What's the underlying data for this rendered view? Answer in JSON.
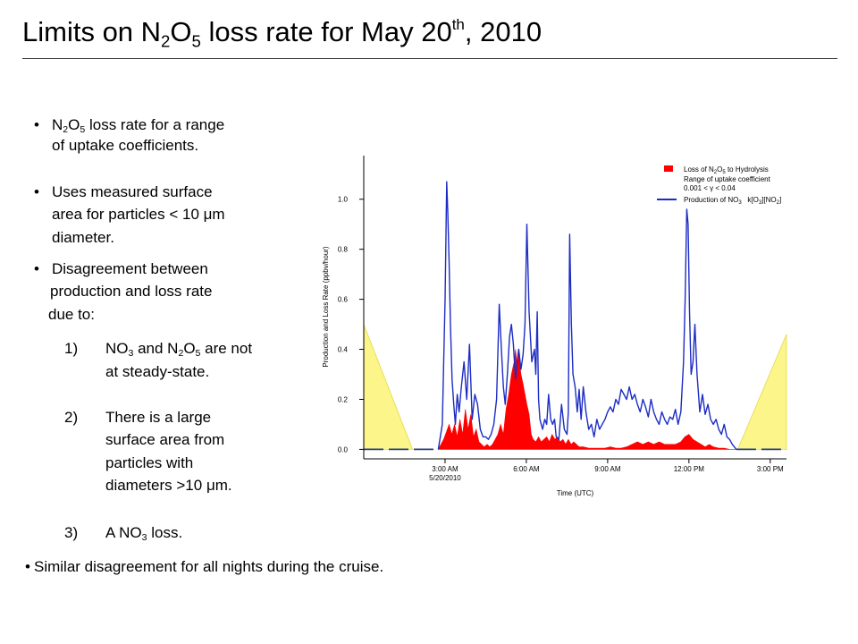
{
  "header": {
    "title_pre": "Limits on N",
    "title_sub1": "2",
    "title_mid": "O",
    "title_sub2": "5",
    "title_post": " loss rate for May 20",
    "title_sup": "th",
    "title_end": ", 2010"
  },
  "bullets": {
    "b1": {
      "pre": "N",
      "s1": "2",
      "mid": "O",
      "s2": "5",
      "post": " loss rate for a range",
      "line2": "of uptake coefficients."
    },
    "b2": {
      "line1_pre": "Uses measured surface",
      "line2_pre": "area for particles < 10 ",
      "mu": "μ",
      "line2_post": "m",
      "line3": "diameter."
    },
    "b3": {
      "line1": "Disagreement between",
      "line2": "production and loss rate",
      "line3": "due to:"
    },
    "items": {
      "n1": "1)",
      "i1_a": "NO",
      "i1_s1": "3",
      "i1_b": " and N",
      "i1_s2": "2",
      "i1_c": "O",
      "i1_s3": "5",
      "i1_d": " are not",
      "i1_line2": "at steady-state.",
      "n2": "2)",
      "i2_l1": "There is a large",
      "i2_l2": "surface area from",
      "i2_l3": "particles with",
      "i2_l4a": "diameters >10 ",
      "i2_mu": "μ",
      "i2_l4b": "m.",
      "n3": "3)",
      "i3_a": "A NO",
      "i3_s": "3",
      "i3_b": " loss."
    },
    "b4": "Similar disagreement for all nights during the cruise.",
    "bullet_char": "•"
  },
  "chart_data": {
    "type": "line",
    "title": "",
    "xlabel": "Time (UTC)",
    "ylabel": "Production and Loss Rate (ppbv/hour)",
    "xlim": [
      0.0,
      15.6
    ],
    "ylim": [
      -0.02,
      1.16
    ],
    "x_ticks": [
      {
        "value": 3,
        "label": "3:00 AM",
        "sublabel": "5/20/2010"
      },
      {
        "value": 6,
        "label": "6:00 AM",
        "sublabel": ""
      },
      {
        "value": 9,
        "label": "9:00 AM",
        "sublabel": ""
      },
      {
        "value": 12,
        "label": "12:00 PM",
        "sublabel": ""
      },
      {
        "value": 15,
        "label": "3:00 PM",
        "sublabel": ""
      }
    ],
    "y_ticks": [
      0.0,
      0.2,
      0.4,
      0.6,
      0.8,
      1.0
    ],
    "y_tick_labels": [
      "0.0",
      "0.2",
      "0.4",
      "0.6",
      "0.8",
      "1.0"
    ],
    "legend": {
      "placement": "top-right",
      "loss_pre": "Loss of N",
      "loss_s1": "2",
      "loss_mid": "O",
      "loss_s2": "5",
      "loss_post": " to Hydrolysis",
      "range_line1": "Range of uptake coefficient",
      "range_line2_pre": "0.001 < ",
      "gamma": "γ",
      "range_line2_post": " < 0.04",
      "prod_pre": "Production of NO",
      "prod_s": "3",
      "prod_post": "   k[O",
      "prod_s2": "3",
      "prod_post2": "][NO",
      "prod_s3": "2",
      "prod_post3": "]"
    },
    "colors": {
      "production": "#1c2cc4",
      "loss": "#ff0000",
      "envelope": "#fbf58a",
      "envelope_edge": "#e4d94a"
    },
    "envelope": [
      {
        "name": "left",
        "points": [
          [
            0.0,
            0.0
          ],
          [
            0.0,
            0.5
          ],
          [
            1.8,
            0.0
          ]
        ]
      },
      {
        "name": "right",
        "points": [
          [
            13.8,
            0.0
          ],
          [
            15.6,
            0.46
          ],
          [
            15.6,
            0.0
          ]
        ]
      }
    ],
    "zero_segments": [
      [
        0.0,
        2.75
      ],
      [
        13.75,
        15.6
      ]
    ],
    "series": [
      {
        "kind": "production",
        "x": [
          2.75,
          2.9,
          3.0,
          3.06,
          3.1,
          3.15,
          3.2,
          3.26,
          3.32,
          3.38,
          3.45,
          3.52,
          3.6,
          3.7,
          3.8,
          3.9,
          4.0,
          4.1,
          4.2,
          4.3,
          4.4,
          4.5,
          4.6,
          4.7,
          4.8,
          4.9,
          5.0,
          5.08,
          5.15,
          5.22,
          5.3,
          5.38,
          5.45,
          5.52,
          5.6,
          5.66,
          5.72,
          5.8,
          5.88,
          5.95,
          6.02,
          6.1,
          6.2,
          6.3,
          6.35,
          6.4,
          6.45,
          6.5,
          6.55,
          6.6,
          6.68,
          6.75,
          6.82,
          6.9,
          6.97,
          7.04,
          7.1,
          7.2,
          7.3,
          7.4,
          7.5,
          7.55,
          7.6,
          7.66,
          7.72,
          7.8,
          7.88,
          7.95,
          8.02,
          8.1,
          8.2,
          8.3,
          8.4,
          8.5,
          8.6,
          8.7,
          8.8,
          8.9,
          9.0,
          9.1,
          9.2,
          9.3,
          9.4,
          9.5,
          9.6,
          9.7,
          9.8,
          9.9,
          10.0,
          10.1,
          10.2,
          10.3,
          10.4,
          10.5,
          10.6,
          10.7,
          10.8,
          10.9,
          11.0,
          11.1,
          11.2,
          11.3,
          11.4,
          11.5,
          11.6,
          11.7,
          11.8,
          11.86,
          11.92,
          11.97,
          12.02,
          12.08,
          12.15,
          12.22,
          12.3,
          12.4,
          12.5,
          12.6,
          12.7,
          12.8,
          12.9,
          13.0,
          13.1,
          13.2,
          13.3,
          13.4,
          13.5,
          13.6,
          13.75
        ],
        "y": [
          0.0,
          0.1,
          0.6,
          1.07,
          0.95,
          0.75,
          0.5,
          0.28,
          0.18,
          0.1,
          0.22,
          0.15,
          0.25,
          0.35,
          0.2,
          0.42,
          0.12,
          0.22,
          0.18,
          0.08,
          0.05,
          0.05,
          0.04,
          0.06,
          0.1,
          0.2,
          0.58,
          0.4,
          0.25,
          0.18,
          0.3,
          0.45,
          0.5,
          0.42,
          0.28,
          0.35,
          0.4,
          0.32,
          0.38,
          0.5,
          0.9,
          0.55,
          0.35,
          0.4,
          0.3,
          0.55,
          0.2,
          0.12,
          0.1,
          0.08,
          0.12,
          0.1,
          0.22,
          0.12,
          0.1,
          0.12,
          0.05,
          0.04,
          0.18,
          0.08,
          0.06,
          0.15,
          0.86,
          0.5,
          0.3,
          0.25,
          0.15,
          0.24,
          0.12,
          0.25,
          0.15,
          0.08,
          0.1,
          0.05,
          0.12,
          0.08,
          0.1,
          0.12,
          0.15,
          0.17,
          0.15,
          0.2,
          0.18,
          0.24,
          0.22,
          0.2,
          0.25,
          0.2,
          0.22,
          0.18,
          0.15,
          0.2,
          0.17,
          0.13,
          0.2,
          0.15,
          0.12,
          0.1,
          0.15,
          0.12,
          0.1,
          0.13,
          0.12,
          0.16,
          0.1,
          0.15,
          0.35,
          0.6,
          0.96,
          0.9,
          0.55,
          0.3,
          0.35,
          0.5,
          0.3,
          0.15,
          0.22,
          0.14,
          0.18,
          0.12,
          0.1,
          0.12,
          0.08,
          0.06,
          0.1,
          0.05,
          0.04,
          0.02,
          0.0
        ]
      },
      {
        "kind": "loss",
        "x": [
          2.75,
          2.85,
          2.95,
          3.05,
          3.15,
          3.25,
          3.35,
          3.45,
          3.55,
          3.65,
          3.75,
          3.85,
          3.95,
          4.05,
          4.15,
          4.25,
          4.35,
          4.45,
          4.55,
          4.65,
          4.75,
          4.85,
          4.95,
          5.05,
          5.15,
          5.25,
          5.35,
          5.45,
          5.55,
          5.6,
          5.65,
          5.72,
          5.8,
          5.88,
          5.95,
          6.02,
          6.1,
          6.18,
          6.25,
          6.35,
          6.45,
          6.55,
          6.65,
          6.75,
          6.85,
          6.95,
          7.05,
          7.15,
          7.25,
          7.35,
          7.45,
          7.55,
          7.65,
          7.75,
          7.85,
          7.95,
          8.1,
          8.3,
          8.5,
          8.7,
          8.9,
          9.1,
          9.3,
          9.5,
          9.7,
          9.9,
          10.1,
          10.3,
          10.5,
          10.7,
          10.9,
          11.1,
          11.3,
          11.5,
          11.7,
          11.85,
          12.0,
          12.15,
          12.3,
          12.45,
          12.6,
          12.75,
          12.9,
          13.1,
          13.3,
          13.5,
          13.75
        ],
        "y": [
          0.0,
          0.02,
          0.04,
          0.07,
          0.1,
          0.06,
          0.1,
          0.05,
          0.12,
          0.06,
          0.16,
          0.08,
          0.14,
          0.05,
          0.08,
          0.03,
          0.02,
          0.01,
          0.02,
          0.01,
          0.02,
          0.04,
          0.06,
          0.1,
          0.06,
          0.16,
          0.22,
          0.3,
          0.35,
          0.4,
          0.34,
          0.38,
          0.3,
          0.26,
          0.22,
          0.18,
          0.14,
          0.06,
          0.04,
          0.03,
          0.05,
          0.03,
          0.04,
          0.05,
          0.03,
          0.06,
          0.04,
          0.05,
          0.03,
          0.04,
          0.02,
          0.04,
          0.02,
          0.03,
          0.02,
          0.01,
          0.01,
          0.005,
          0.005,
          0.005,
          0.005,
          0.01,
          0.005,
          0.005,
          0.01,
          0.02,
          0.03,
          0.02,
          0.03,
          0.02,
          0.03,
          0.02,
          0.02,
          0.02,
          0.03,
          0.05,
          0.06,
          0.04,
          0.03,
          0.02,
          0.01,
          0.02,
          0.01,
          0.005,
          0.005,
          0.0,
          0.0
        ]
      }
    ]
  }
}
